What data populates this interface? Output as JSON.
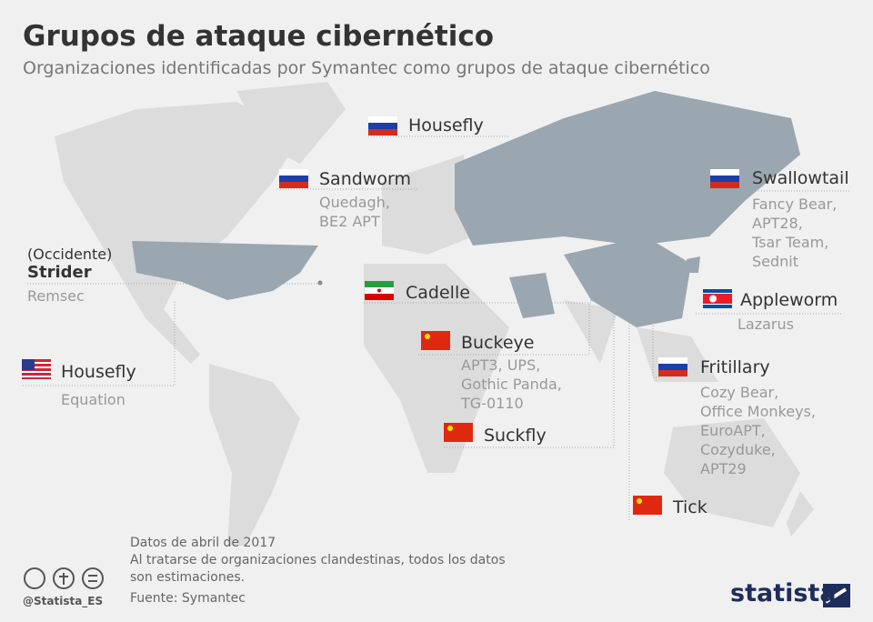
{
  "header": {
    "title": "Grupos de ataque cibernético",
    "subtitle": "Organizaciones identificadas por Symantec como grupos de ataque cibernético"
  },
  "groups": [
    {
      "name": "Housefly",
      "aliases": []
    },
    {
      "name": "Sandworm",
      "aliases": [
        "Quedagh,",
        "BE2 APT"
      ]
    },
    {
      "region": "(Occidente)",
      "name": "Strider",
      "aliases": [
        "Remsec"
      ]
    },
    {
      "name": "Housefly",
      "aliases": [
        "Equation"
      ]
    },
    {
      "name": "Cadelle",
      "aliases": []
    },
    {
      "name": "Buckeye",
      "aliases": [
        "APT3, UPS,",
        "Gothic Panda,",
        "TG-0110"
      ]
    },
    {
      "name": "Suckfly",
      "aliases": []
    },
    {
      "name": "Tick",
      "aliases": []
    },
    {
      "name": "Swallowtail",
      "aliases": [
        "Fancy Bear,",
        "APT28,",
        "Tsar Team,",
        "Sednit"
      ]
    },
    {
      "name": "Appleworm",
      "aliases": [
        "Lazarus"
      ]
    },
    {
      "name": "Fritillary",
      "aliases": [
        "Cozy Bear,",
        "Office Monkeys,",
        "EuroAPT,",
        "Cozyduke,",
        "APT29"
      ]
    }
  ],
  "footer": {
    "notes": [
      "Datos de abril de 2017",
      "Al tratarse de organizaciones clandestinas, todos los datos",
      "son estimaciones."
    ],
    "source": "Fuente: Symantec",
    "credit": "@Statista_ES",
    "logo": "statista"
  }
}
